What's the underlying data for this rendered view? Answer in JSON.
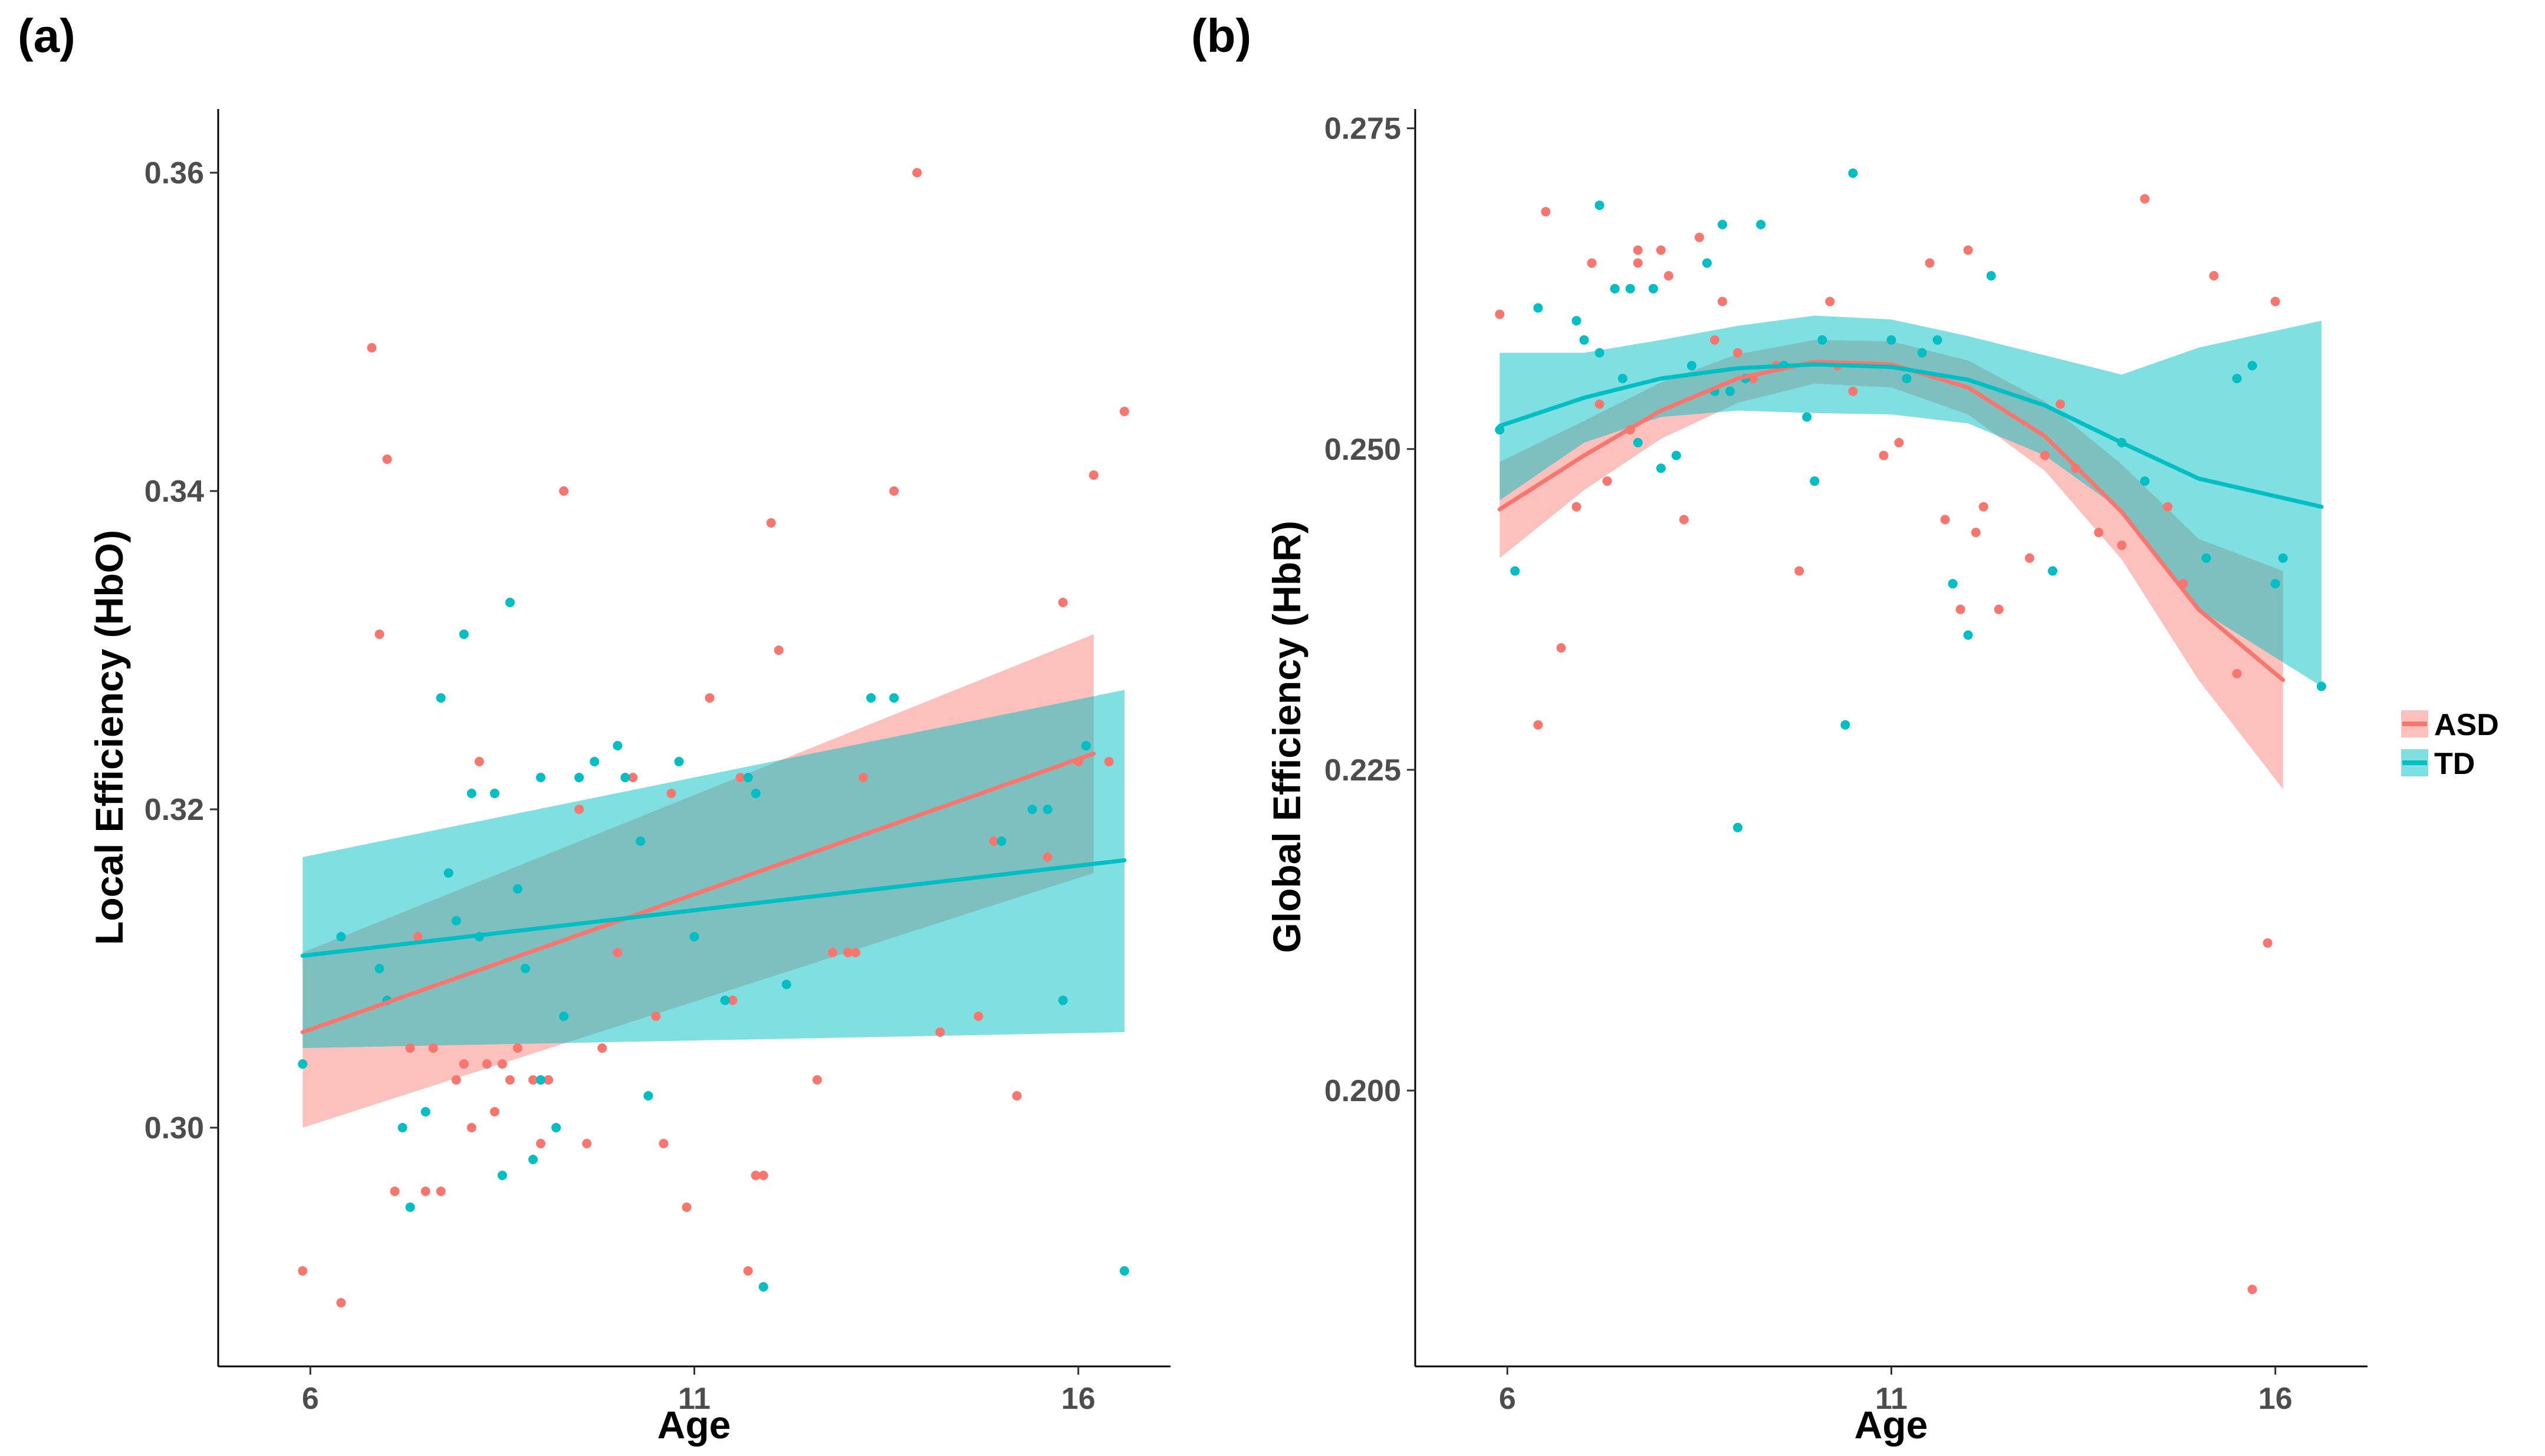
{
  "legend": {
    "entries": [
      {
        "label": "ASD",
        "color": "#F8766D",
        "band_color": "#F8766D"
      },
      {
        "label": "TD",
        "color": "#00BFC4",
        "band_color": "#00BFC4"
      }
    ]
  },
  "chart_data": [
    {
      "panel_label": "(a)",
      "type": "scatter",
      "title": "",
      "xlabel": "Age",
      "ylabel": "Local Efficiency (HbO)",
      "xlim": [
        4.8,
        17.2
      ],
      "ylim": [
        0.285,
        0.364
      ],
      "x_ticks": [
        6,
        11,
        16
      ],
      "y_ticks": [
        0.3,
        0.32,
        0.34,
        0.36
      ],
      "x_tick_labels": [
        "6",
        "11",
        "16"
      ],
      "y_tick_labels": [
        "0.30",
        "0.32",
        "0.34",
        "0.36"
      ],
      "series": [
        {
          "name": "ASD",
          "color": "#F8766D",
          "points": [
            [
              5.9,
              0.291
            ],
            [
              6.4,
              0.289
            ],
            [
              6.8,
              0.349
            ],
            [
              6.9,
              0.331
            ],
            [
              7.0,
              0.342
            ],
            [
              7.1,
              0.296
            ],
            [
              7.3,
              0.305
            ],
            [
              7.4,
              0.312
            ],
            [
              7.5,
              0.296
            ],
            [
              7.6,
              0.305
            ],
            [
              7.7,
              0.296
            ],
            [
              7.8,
              0.316
            ],
            [
              7.9,
              0.303
            ],
            [
              8.0,
              0.304
            ],
            [
              8.1,
              0.3
            ],
            [
              8.2,
              0.323
            ],
            [
              8.3,
              0.304
            ],
            [
              8.4,
              0.301
            ],
            [
              8.5,
              0.304
            ],
            [
              8.6,
              0.303
            ],
            [
              8.7,
              0.305
            ],
            [
              8.9,
              0.303
            ],
            [
              9.0,
              0.299
            ],
            [
              9.1,
              0.303
            ],
            [
              9.3,
              0.34
            ],
            [
              9.5,
              0.32
            ],
            [
              9.6,
              0.299
            ],
            [
              9.8,
              0.305
            ],
            [
              10.0,
              0.311
            ],
            [
              10.2,
              0.322
            ],
            [
              10.3,
              0.318
            ],
            [
              10.5,
              0.307
            ],
            [
              10.6,
              0.299
            ],
            [
              10.7,
              0.321
            ],
            [
              10.9,
              0.295
            ],
            [
              11.2,
              0.327
            ],
            [
              11.5,
              0.308
            ],
            [
              11.6,
              0.322
            ],
            [
              11.7,
              0.291
            ],
            [
              11.8,
              0.297
            ],
            [
              11.9,
              0.297
            ],
            [
              12.0,
              0.338
            ],
            [
              12.1,
              0.33
            ],
            [
              12.6,
              0.303
            ],
            [
              12.8,
              0.311
            ],
            [
              13.0,
              0.311
            ],
            [
              13.1,
              0.311
            ],
            [
              13.2,
              0.322
            ],
            [
              13.6,
              0.34
            ],
            [
              13.9,
              0.36
            ],
            [
              14.2,
              0.306
            ],
            [
              14.7,
              0.307
            ],
            [
              14.9,
              0.318
            ],
            [
              15.2,
              0.302
            ],
            [
              15.6,
              0.317
            ],
            [
              15.8,
              0.333
            ],
            [
              16.0,
              0.323
            ],
            [
              16.2,
              0.341
            ],
            [
              16.4,
              0.323
            ],
            [
              16.6,
              0.345
            ]
          ],
          "fit": {
            "method": "lm",
            "x": [
              5.9,
              16.2
            ],
            "y": [
              0.306,
              0.3235
            ],
            "ci_lower": [
              0.3,
              0.316
            ],
            "ci_upper": [
              0.311,
              0.331
            ]
          }
        },
        {
          "name": "TD",
          "color": "#00BFC4",
          "points": [
            [
              5.9,
              0.304
            ],
            [
              6.4,
              0.312
            ],
            [
              6.9,
              0.31
            ],
            [
              7.0,
              0.308
            ],
            [
              7.2,
              0.3
            ],
            [
              7.3,
              0.295
            ],
            [
              7.5,
              0.301
            ],
            [
              7.7,
              0.327
            ],
            [
              7.8,
              0.316
            ],
            [
              7.9,
              0.313
            ],
            [
              8.0,
              0.331
            ],
            [
              8.1,
              0.321
            ],
            [
              8.2,
              0.312
            ],
            [
              8.4,
              0.321
            ],
            [
              8.5,
              0.297
            ],
            [
              8.6,
              0.333
            ],
            [
              8.7,
              0.315
            ],
            [
              8.8,
              0.31
            ],
            [
              8.9,
              0.298
            ],
            [
              9.0,
              0.303
            ],
            [
              9.0,
              0.322
            ],
            [
              9.2,
              0.3
            ],
            [
              9.3,
              0.307
            ],
            [
              9.5,
              0.322
            ],
            [
              9.7,
              0.323
            ],
            [
              10.0,
              0.324
            ],
            [
              10.1,
              0.322
            ],
            [
              10.3,
              0.318
            ],
            [
              10.4,
              0.302
            ],
            [
              10.8,
              0.323
            ],
            [
              11.0,
              0.312
            ],
            [
              11.4,
              0.308
            ],
            [
              11.7,
              0.322
            ],
            [
              11.8,
              0.321
            ],
            [
              11.9,
              0.29
            ],
            [
              12.2,
              0.309
            ],
            [
              13.3,
              0.327
            ],
            [
              13.6,
              0.327
            ],
            [
              15.0,
              0.318
            ],
            [
              15.4,
              0.32
            ],
            [
              15.6,
              0.32
            ],
            [
              15.8,
              0.308
            ],
            [
              16.1,
              0.324
            ],
            [
              16.6,
              0.291
            ]
          ],
          "fit": {
            "method": "lm",
            "x": [
              5.9,
              16.6
            ],
            "y": [
              0.3108,
              0.3168
            ],
            "ci_lower": [
              0.305,
              0.306
            ],
            "ci_upper": [
              0.317,
              0.3275
            ]
          }
        }
      ]
    },
    {
      "panel_label": "(b)",
      "type": "scatter",
      "title": "",
      "xlabel": "Age",
      "ylabel": "Global Efficiency (HbR)",
      "xlim": [
        4.8,
        17.2
      ],
      "ylim": [
        0.1785,
        0.2765
      ],
      "x_ticks": [
        6,
        11,
        16
      ],
      "y_ticks": [
        0.2,
        0.225,
        0.25,
        0.275
      ],
      "x_tick_labels": [
        "6",
        "11",
        "16"
      ],
      "y_tick_labels": [
        "0.200",
        "0.225",
        "0.250",
        "0.275"
      ],
      "series": [
        {
          "name": "ASD",
          "color": "#F8766D",
          "points": [
            [
              5.9,
              0.2605
            ],
            [
              6.4,
              0.2285
            ],
            [
              6.5,
              0.2685
            ],
            [
              6.7,
              0.2345
            ],
            [
              6.9,
              0.2455
            ],
            [
              7.1,
              0.2645
            ],
            [
              7.2,
              0.2535
            ],
            [
              7.3,
              0.2475
            ],
            [
              7.4,
              0.2625
            ],
            [
              7.6,
              0.2515
            ],
            [
              7.7,
              0.2645
            ],
            [
              7.7,
              0.2655
            ],
            [
              7.9,
              0.2625
            ],
            [
              8.0,
              0.2655
            ],
            [
              8.1,
              0.2635
            ],
            [
              8.3,
              0.2445
            ],
            [
              8.5,
              0.2665
            ],
            [
              8.7,
              0.2585
            ],
            [
              8.8,
              0.2615
            ],
            [
              9.0,
              0.2575
            ],
            [
              9.2,
              0.2555
            ],
            [
              9.5,
              0.2565
            ],
            [
              9.8,
              0.2405
            ],
            [
              10.0,
              0.2475
            ],
            [
              10.2,
              0.2615
            ],
            [
              10.3,
              0.2565
            ],
            [
              10.5,
              0.2545
            ],
            [
              10.9,
              0.2495
            ],
            [
              11.1,
              0.2505
            ],
            [
              11.5,
              0.2645
            ],
            [
              11.7,
              0.2445
            ],
            [
              11.9,
              0.2375
            ],
            [
              12.0,
              0.2655
            ],
            [
              12.1,
              0.2435
            ],
            [
              12.2,
              0.2455
            ],
            [
              12.4,
              0.2375
            ],
            [
              12.8,
              0.2415
            ],
            [
              13.0,
              0.2495
            ],
            [
              13.2,
              0.2535
            ],
            [
              13.4,
              0.2485
            ],
            [
              13.7,
              0.2435
            ],
            [
              14.0,
              0.2425
            ],
            [
              14.3,
              0.2695
            ],
            [
              14.6,
              0.2455
            ],
            [
              14.8,
              0.2395
            ],
            [
              15.2,
              0.2635
            ],
            [
              15.5,
              0.2325
            ],
            [
              15.7,
              0.1845
            ],
            [
              15.9,
              0.2115
            ],
            [
              16.0,
              0.2615
            ]
          ],
          "fit": {
            "method": "loess",
            "x": [
              5.9,
              7.0,
              8.0,
              9.0,
              10.0,
              11.0,
              12.0,
              13.0,
              14.0,
              15.0,
              16.1
            ],
            "y": [
              0.2453,
              0.2495,
              0.253,
              0.2555,
              0.2568,
              0.2566,
              0.2548,
              0.251,
              0.2451,
              0.2375,
              0.232
            ],
            "ci_lower": [
              0.2415,
              0.2468,
              0.2508,
              0.2536,
              0.2551,
              0.2548,
              0.2527,
              0.2483,
              0.2414,
              0.232,
              0.2235
            ],
            "ci_upper": [
              0.249,
              0.2522,
              0.2552,
              0.2574,
              0.2585,
              0.2584,
              0.2569,
              0.2537,
              0.2488,
              0.243,
              0.2405
            ]
          }
        },
        {
          "name": "TD",
          "color": "#00BFC4",
          "points": [
            [
              5.9,
              0.2515
            ],
            [
              6.1,
              0.2405
            ],
            [
              6.4,
              0.261
            ],
            [
              6.9,
              0.26
            ],
            [
              7.0,
              0.2585
            ],
            [
              7.2,
              0.2575
            ],
            [
              7.2,
              0.269
            ],
            [
              7.4,
              0.2625
            ],
            [
              7.5,
              0.2555
            ],
            [
              7.6,
              0.2625
            ],
            [
              7.7,
              0.2505
            ],
            [
              7.9,
              0.2625
            ],
            [
              8.0,
              0.2485
            ],
            [
              8.2,
              0.2495
            ],
            [
              8.4,
              0.2565
            ],
            [
              8.6,
              0.2645
            ],
            [
              8.7,
              0.2545
            ],
            [
              8.8,
              0.2675
            ],
            [
              8.9,
              0.2545
            ],
            [
              9.0,
              0.2205
            ],
            [
              9.1,
              0.2555
            ],
            [
              9.3,
              0.2675
            ],
            [
              9.6,
              0.2565
            ],
            [
              9.9,
              0.2525
            ],
            [
              10.0,
              0.2475
            ],
            [
              10.1,
              0.2585
            ],
            [
              10.4,
              0.2285
            ],
            [
              10.5,
              0.2715
            ],
            [
              11.0,
              0.2585
            ],
            [
              11.2,
              0.2555
            ],
            [
              11.4,
              0.2575
            ],
            [
              11.6,
              0.2585
            ],
            [
              11.8,
              0.2395
            ],
            [
              12.0,
              0.2355
            ],
            [
              12.3,
              0.2635
            ],
            [
              13.1,
              0.2405
            ],
            [
              14.0,
              0.2505
            ],
            [
              14.3,
              0.2475
            ],
            [
              15.1,
              0.2415
            ],
            [
              15.5,
              0.2555
            ],
            [
              15.7,
              0.2565
            ],
            [
              16.0,
              0.2395
            ],
            [
              16.1,
              0.2415
            ],
            [
              16.6,
              0.2315
            ]
          ],
          "fit": {
            "method": "loess",
            "x": [
              5.9,
              7.0,
              8.0,
              9.0,
              10.0,
              11.0,
              12.0,
              13.0,
              14.0,
              15.0,
              16.6
            ],
            "y": [
              0.2518,
              0.254,
              0.2555,
              0.2563,
              0.2566,
              0.2564,
              0.2554,
              0.2534,
              0.2505,
              0.2477,
              0.2455
            ],
            "ci_lower": [
              0.246,
              0.2505,
              0.2525,
              0.253,
              0.2528,
              0.2527,
              0.252,
              0.2495,
              0.2452,
              0.2375,
              0.2315
            ],
            "ci_upper": [
              0.2575,
              0.2575,
              0.2585,
              0.2596,
              0.2604,
              0.2601,
              0.2588,
              0.2573,
              0.2558,
              0.2579,
              0.26
            ]
          }
        }
      ]
    }
  ]
}
